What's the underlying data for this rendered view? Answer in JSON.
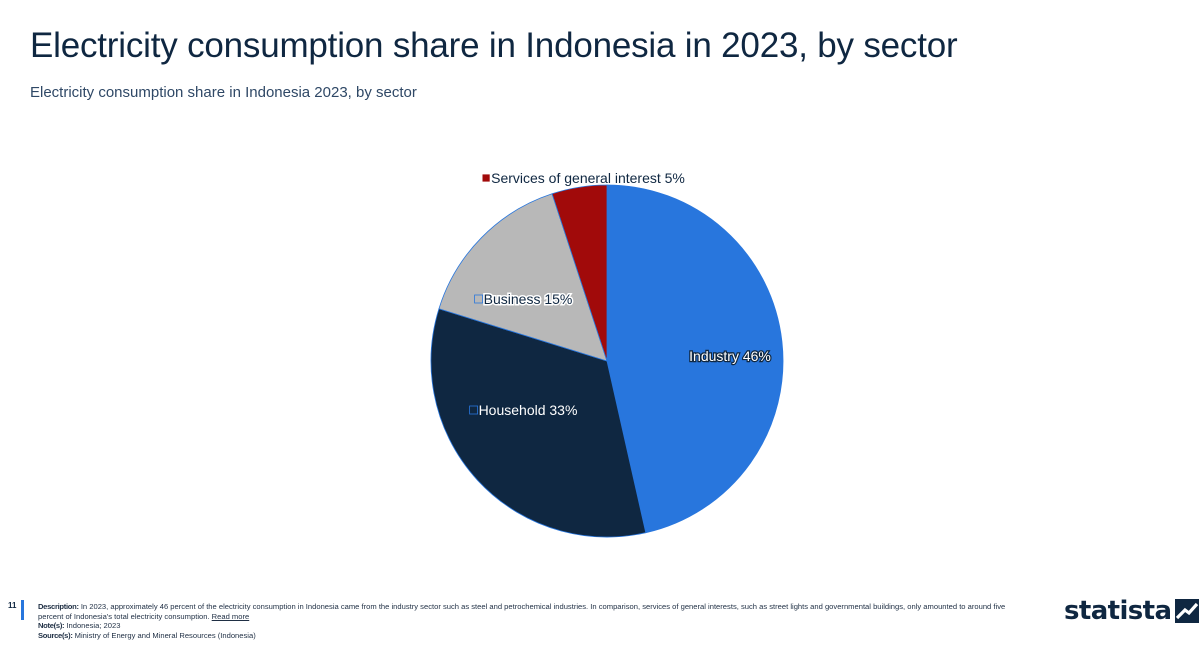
{
  "header": {
    "title": "Electricity consumption share in Indonesia in 2023, by sector",
    "subtitle": "Electricity consumption share in Indonesia 2023, by sector"
  },
  "chart_data": {
    "type": "pie",
    "title": "Electricity consumption share in Indonesia in 2023, by sector",
    "subtitle": "Electricity consumption share in Indonesia 2023, by sector",
    "unit": "%",
    "slices": [
      {
        "label": "Industry",
        "value": 46,
        "color": "#2876dd"
      },
      {
        "label": "Household",
        "value": 33,
        "color": "#0f2741"
      },
      {
        "label": "Business",
        "value": 15,
        "color": "#b8b8b8"
      },
      {
        "label": "Services of general interest",
        "value": 5,
        "color": "#a10a0a"
      }
    ],
    "data_labels": [
      "Industry 46%",
      "Household 33%",
      "Business 15%",
      "Services of general interest 5%"
    ],
    "legend": "none"
  },
  "footer": {
    "page_number": "11",
    "description_label": "Description:",
    "description_text": " In 2023, approximately 46 percent of the electricity consumption in Indonesia came from the industry sector such as steel and petrochemical industries. In comparison, services of general interests, such as street lights and governmental buildings, only amounted to around five percent of Indonesia's total electricity consumption. ",
    "read_more": "Read more",
    "note_label": "Note(s):",
    "note_text": " Indonesia; 2023",
    "source_label": "Source(s):",
    "source_text": " Ministry of Energy and Mineral Resources (Indonesia)",
    "brand": "statista"
  }
}
